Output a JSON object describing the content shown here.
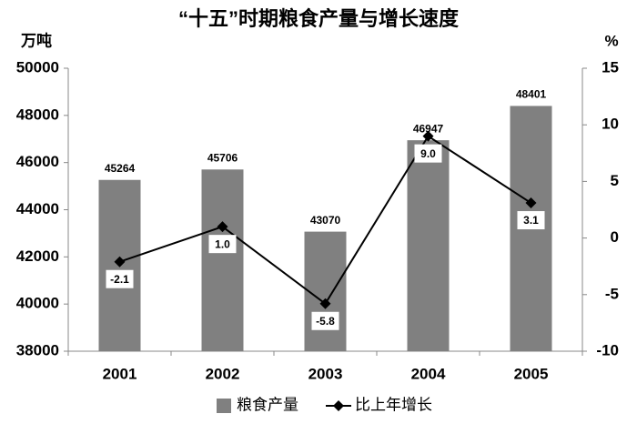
{
  "chart_data": {
    "type": "bar",
    "title": "“十五”时期粮食产量与增长速度",
    "y_label": "万吨",
    "y2_label": "%",
    "categories": [
      "2001",
      "2002",
      "2003",
      "2004",
      "2005"
    ],
    "series": [
      {
        "name": "粮食产量",
        "color": "#808080",
        "values": [
          45264,
          45706,
          43070,
          46947,
          48401
        ]
      },
      {
        "name": "比上年增长",
        "color": "#000000",
        "type": "line",
        "axis": "y2",
        "values": [
          -2.1,
          1.0,
          -5.8,
          9.0,
          3.1
        ],
        "value_labels": [
          "-2.1",
          "1.0",
          "-5.8",
          "9.0",
          "3.1"
        ]
      }
    ],
    "ylim": [
      38000,
      50000
    ],
    "yticks": [
      38000,
      40000,
      42000,
      44000,
      46000,
      48000,
      50000
    ],
    "y2lim": [
      -10,
      15
    ],
    "y2ticks": [
      -10,
      -5,
      0,
      5,
      10,
      15
    ],
    "grid": false,
    "legend": "bottom"
  }
}
